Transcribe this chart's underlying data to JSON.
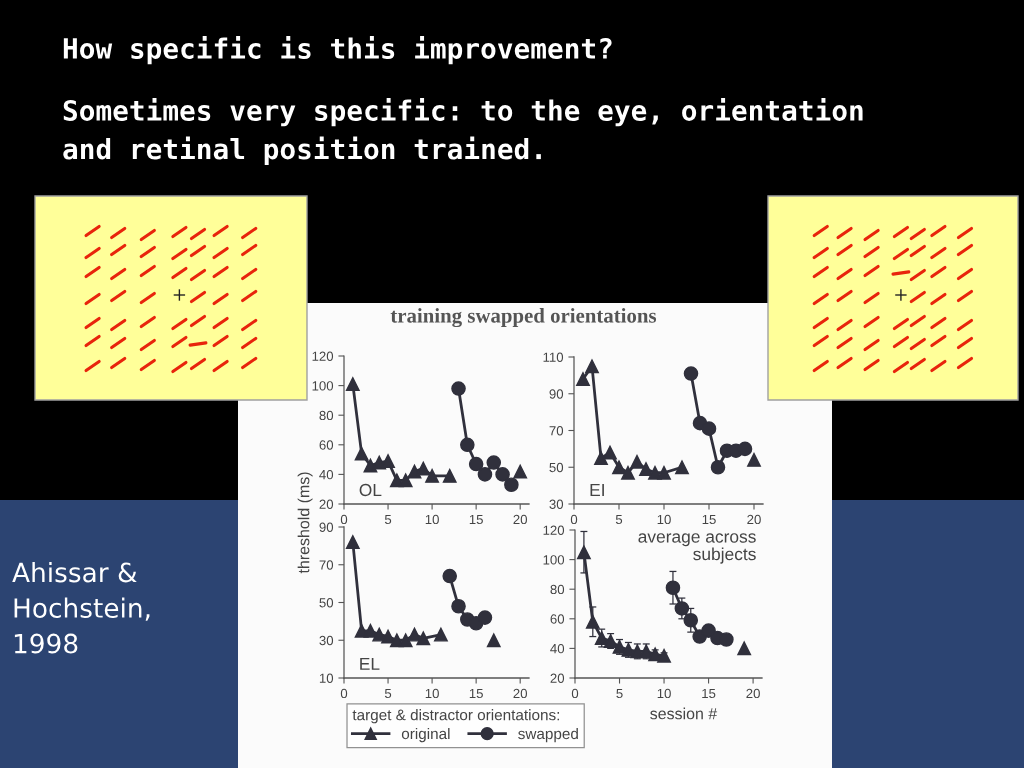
{
  "chart_data": [
    {
      "type": "other",
      "title": "How specific is this improvement?",
      "subtitle": "Sometimes very specific: to the eye, orientation\nand retinal position trained.",
      "annotations": [
        "Ahissar &\nHochstein,\n1998"
      ]
    },
    {
      "type": "line",
      "title": "training swapped orientations",
      "xlim": [
        0,
        21
      ],
      "xticks": [
        0,
        5,
        10,
        15,
        20
      ],
      "ylim": [
        20,
        120
      ],
      "yticks": [
        20,
        40,
        60,
        80,
        100,
        120
      ],
      "annotations": [
        "OL"
      ],
      "series": [
        {
          "color": "#30303c",
          "marker": "triangle",
          "x": [
            1,
            2,
            3,
            4,
            5,
            6,
            7,
            8,
            9,
            10,
            12,
            16,
            20
          ],
          "values": [
            101,
            54,
            46,
            48,
            49,
            36,
            36,
            42,
            44,
            39,
            39,
            null,
            42
          ]
        },
        {
          "color": "#30303c",
          "marker": "circle",
          "x": [
            13,
            14,
            15,
            16,
            17,
            18,
            19
          ],
          "values": [
            98,
            60,
            47,
            40,
            48,
            40,
            33
          ]
        }
      ]
    },
    {
      "type": "line",
      "xlim": [
        0,
        21
      ],
      "xticks": [
        0,
        5,
        10,
        15,
        20
      ],
      "ylim": [
        30,
        110
      ],
      "yticks": [
        30,
        50,
        70,
        90,
        110
      ],
      "annotations": [
        "EI"
      ],
      "series": [
        {
          "color": "#30303c",
          "marker": "triangle",
          "x": [
            1,
            2,
            3,
            4,
            5,
            6,
            7,
            8,
            9,
            10,
            12,
            16,
            20
          ],
          "values": [
            98,
            105,
            55,
            58,
            50,
            47,
            53,
            49,
            47,
            47,
            50,
            null,
            54
          ]
        },
        {
          "color": "#30303c",
          "marker": "circle",
          "x": [
            13,
            14,
            15,
            16,
            17,
            18,
            19
          ],
          "values": [
            101,
            74,
            71,
            50,
            59,
            59,
            60
          ]
        }
      ]
    },
    {
      "type": "line",
      "ylabel": "threshold (ms)",
      "xlim": [
        0,
        21
      ],
      "xticks": [
        0,
        5,
        10,
        15,
        20
      ],
      "ylim": [
        10,
        90
      ],
      "yticks": [
        10,
        30,
        50,
        70,
        90
      ],
      "annotations": [
        "EL"
      ],
      "legend": "bottom",
      "legend_title": "target & distractor orientations:",
      "series": [
        {
          "name": "original",
          "color": "#30303c",
          "marker": "triangle",
          "x": [
            1,
            2,
            3,
            4,
            5,
            6,
            7,
            8,
            9,
            11,
            14,
            17
          ],
          "values": [
            82,
            35,
            35,
            33,
            32,
            30,
            30,
            33,
            31,
            33,
            null,
            30
          ]
        },
        {
          "name": "swapped",
          "color": "#30303c",
          "marker": "circle",
          "x": [
            12,
            13,
            14,
            15,
            16
          ],
          "values": [
            64,
            48,
            41,
            39,
            42
          ]
        }
      ]
    },
    {
      "type": "line",
      "xlabel": "session #",
      "xlim": [
        0,
        21
      ],
      "xticks": [
        0,
        5,
        10,
        15,
        20
      ],
      "ylim": [
        20,
        120
      ],
      "yticks": [
        20,
        40,
        60,
        80,
        100,
        120
      ],
      "annotations": [
        "average across\nsubjects"
      ],
      "series": [
        {
          "color": "#30303c",
          "marker": "triangle",
          "x": [
            1,
            2,
            3,
            4,
            5,
            6,
            7,
            8,
            9,
            10,
            15,
            19
          ],
          "values": [
            105,
            58,
            47,
            45,
            41,
            39,
            38,
            38,
            36,
            35,
            null,
            40
          ],
          "errors": [
            14,
            10,
            6,
            5,
            5,
            5,
            5,
            5,
            3,
            2,
            null,
            null
          ]
        },
        {
          "color": "#30303c",
          "marker": "circle",
          "x": [
            11,
            12,
            13,
            14,
            15,
            16,
            17
          ],
          "values": [
            81,
            67,
            59,
            48,
            52,
            47,
            46
          ],
          "errors": [
            11,
            7,
            8,
            null,
            null,
            null,
            null
          ]
        }
      ]
    }
  ]
}
